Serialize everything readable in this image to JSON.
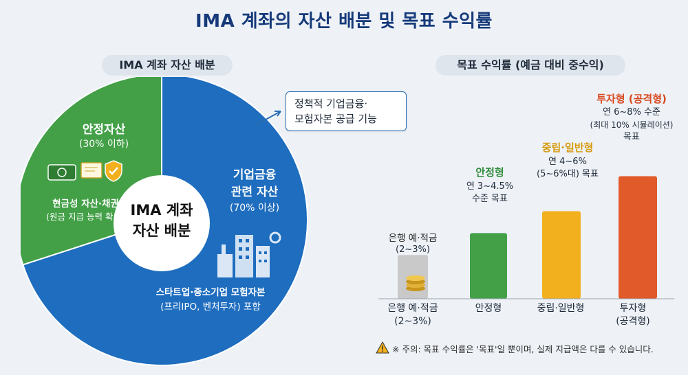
{
  "title": "IMA 계좌의 자산 배분 및 목표 수익률",
  "left": {
    "subtitle": "IMA 계좌 자산 배분",
    "center_label_1": "IMA 계좌",
    "center_label_2": "자산 배분",
    "safe": {
      "title": "안정자산",
      "pct": "(30% 이하)",
      "desc1": "현금성 자산·채권",
      "desc2": "(원금 지급 능력 확보)"
    },
    "corp": {
      "title1": "기업금융",
      "title2": "관련 자산",
      "pct": "(70% 이상)",
      "desc1": "스타트업·중소기업 모험자본",
      "desc2": "(프리IPO, 벤처투자) 포함"
    },
    "callout1": "정책적 기업금융·",
    "callout2": "모험자본 공급 기능"
  },
  "right": {
    "subtitle": "목표 수익률 (예금 대비 중수익)",
    "bars": [
      {
        "main": "은행 예·적금",
        "sub": [
          "(2~3%)"
        ],
        "xlabel": [
          "은행 예·적금",
          "(2~3%)"
        ]
      },
      {
        "main": "안정형",
        "sub": [
          "연 3~4.5%",
          "수준 목표"
        ],
        "xlabel": [
          "안정형"
        ]
      },
      {
        "main": "중립·일반형",
        "sub": [
          "연 4~6%",
          "(5~6%대) 목표"
        ],
        "xlabel": [
          "중립·일반형"
        ]
      },
      {
        "main": "투자형 (공격형)",
        "sub": [
          "연 6~8% 수준",
          "(최대 10% 시뮬레이션)",
          "목표"
        ],
        "xlabel": [
          "투자형",
          "(공격형)"
        ]
      }
    ],
    "note": "※ 주의: 목표 수익률은 '목표'일 뿐이며, 실제 지급액은 다를 수 있습니다."
  },
  "chart_data": [
    {
      "type": "pie",
      "title": "IMA 계좌 자산 배분",
      "categories": [
        "안정자산",
        "기업금융 관련 자산"
      ],
      "values": [
        30,
        70
      ],
      "colors": [
        "#43a047",
        "#1e6dbf"
      ]
    },
    {
      "type": "bar",
      "title": "목표 수익률 (예금 대비 중수익)",
      "categories": [
        "은행 예·적금",
        "안정형",
        "중립·일반형",
        "투자형 (공격형)"
      ],
      "ranges": [
        [
          2,
          3
        ],
        [
          3,
          4.5
        ],
        [
          4,
          6
        ],
        [
          6,
          8
        ]
      ],
      "values": [
        2.5,
        3.75,
        5,
        7
      ],
      "colors": [
        "#c9c9c9",
        "#43a047",
        "#f2b01e",
        "#e15a2a"
      ]
    }
  ]
}
